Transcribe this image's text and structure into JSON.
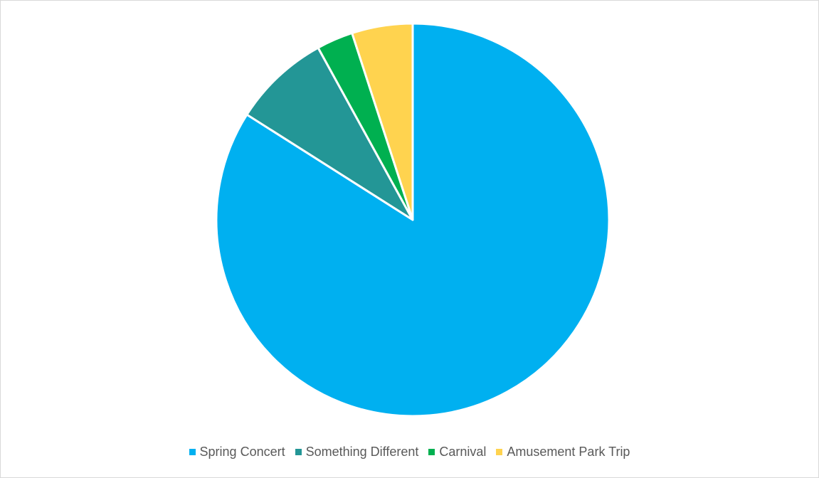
{
  "chart_data": {
    "type": "pie",
    "title": "",
    "categories": [
      "Spring Concert",
      "Something Different",
      "Carnival",
      "Amusement Park Trip"
    ],
    "values": [
      84,
      8,
      3,
      5
    ],
    "colors": [
      "#00b0f0",
      "#239696",
      "#00b050",
      "#ffd34f"
    ],
    "start_angle_deg": 0,
    "direction": "clockwise",
    "legend": {
      "position": "bottom",
      "entries": [
        "Spring Concert",
        "Something Different",
        "Carnival",
        "Amusement Park Trip"
      ]
    }
  }
}
